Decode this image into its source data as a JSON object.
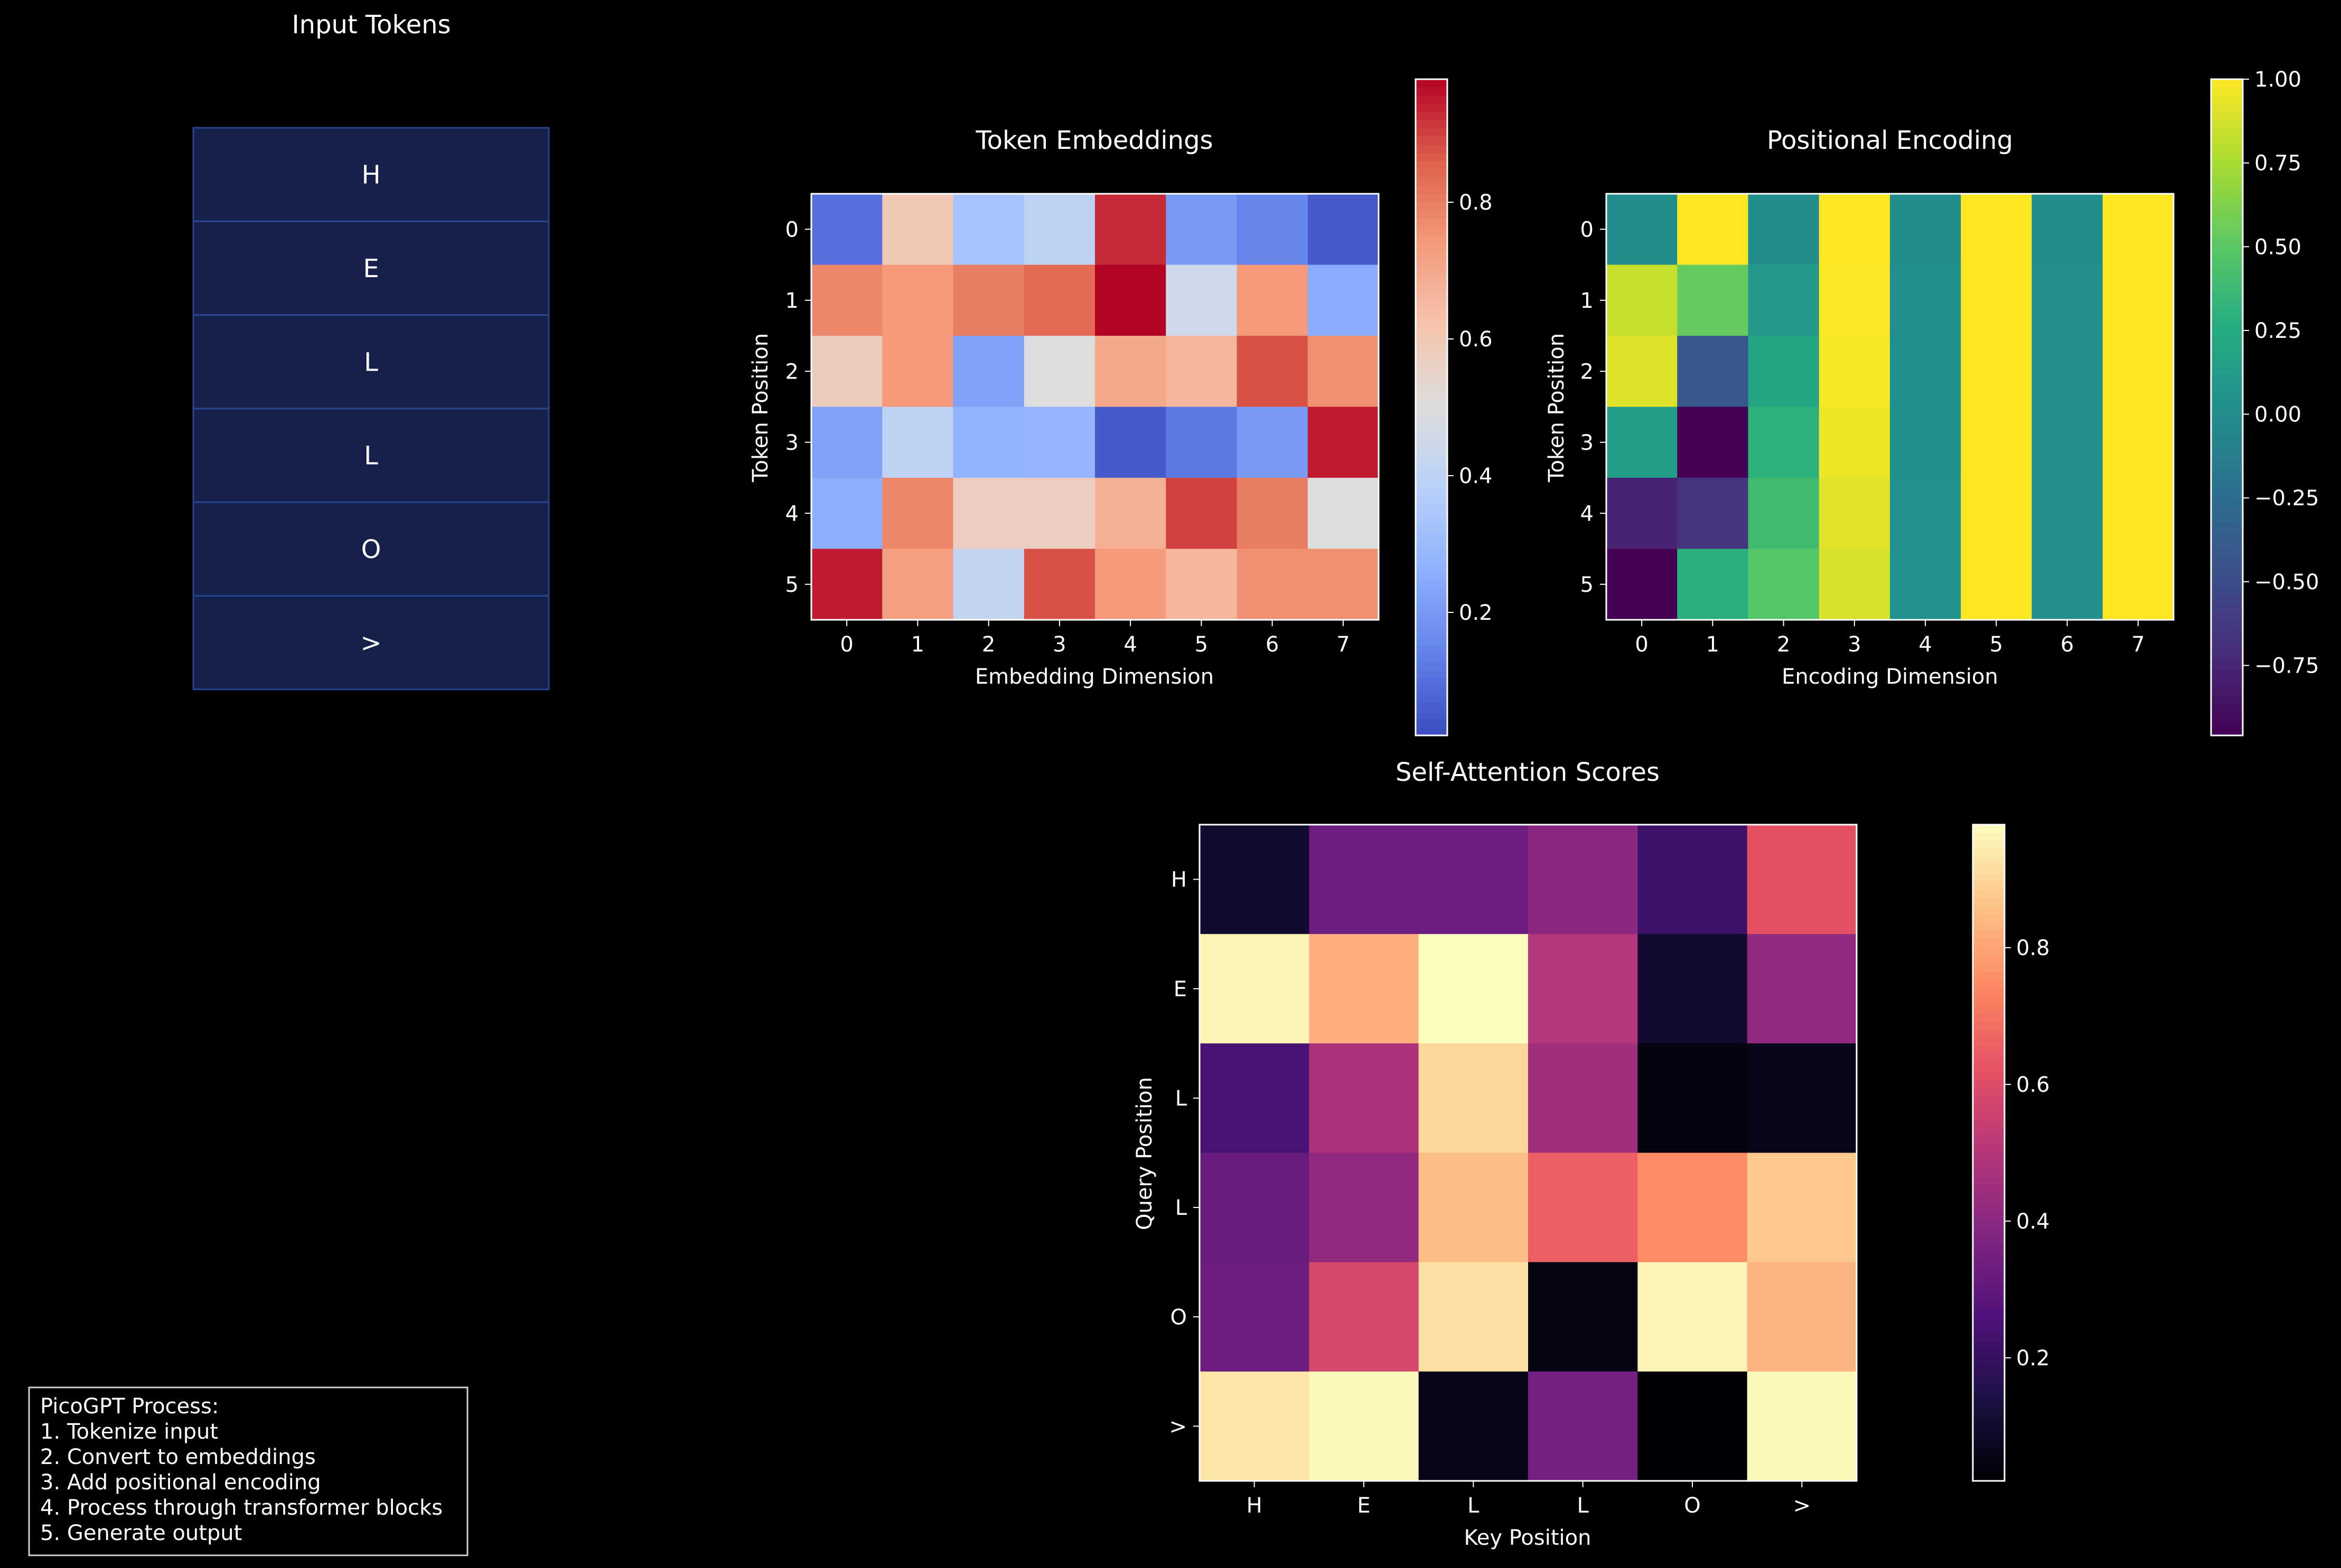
{
  "input_tokens": {
    "title": "Input Tokens",
    "tokens": [
      "H",
      "E",
      "L",
      "L",
      "O",
      ">"
    ]
  },
  "process_box": {
    "lines": [
      "PicoGPT Process:",
      "1. Tokenize input",
      "2. Convert to embeddings",
      "3. Add positional encoding",
      "4. Process through transformer blocks",
      "5. Generate output"
    ]
  },
  "colors": {
    "background": "#000000",
    "token_box_fill": "#15214a",
    "token_box_border": "#2a4590",
    "text": "#ffffff"
  },
  "chart_data": [
    {
      "type": "heatmap",
      "title": "Token Embeddings",
      "xlabel": "Embedding Dimension",
      "ylabel": "Token Position",
      "x_ticks": [
        "0",
        "1",
        "2",
        "3",
        "4",
        "5",
        "6",
        "7"
      ],
      "y_ticks": [
        "0",
        "1",
        "2",
        "3",
        "4",
        "5"
      ],
      "colormap": "coolwarm",
      "vmin": 0.02,
      "vmax": 0.98,
      "colorbar_ticks": [
        0.2,
        0.4,
        0.6,
        0.8
      ],
      "colorbar_labels": [
        "0.2",
        "0.4",
        "0.6",
        "0.8"
      ],
      "values": [
        [
          0.1,
          0.6,
          0.33,
          0.4,
          0.93,
          0.2,
          0.15,
          0.05
        ],
        [
          0.78,
          0.74,
          0.8,
          0.84,
          0.98,
          0.45,
          0.74,
          0.25
        ],
        [
          0.58,
          0.74,
          0.22,
          0.5,
          0.7,
          0.66,
          0.88,
          0.76
        ],
        [
          0.22,
          0.4,
          0.27,
          0.28,
          0.05,
          0.12,
          0.2,
          0.95
        ],
        [
          0.26,
          0.78,
          0.57,
          0.57,
          0.68,
          0.9,
          0.8,
          0.5
        ],
        [
          0.95,
          0.72,
          0.42,
          0.88,
          0.74,
          0.66,
          0.76,
          0.76
        ]
      ]
    },
    {
      "type": "heatmap",
      "title": "Positional Encoding",
      "xlabel": "Encoding Dimension",
      "ylabel": "Token Position",
      "x_ticks": [
        "0",
        "1",
        "2",
        "3",
        "4",
        "5",
        "6",
        "7"
      ],
      "y_ticks": [
        "0",
        "1",
        "2",
        "3",
        "4",
        "5"
      ],
      "colormap": "viridis",
      "vmin": -0.9589,
      "vmax": 1.0,
      "colorbar_ticks": [
        1.0,
        0.75,
        0.5,
        0.25,
        0.0,
        -0.25,
        -0.5,
        -0.75
      ],
      "colorbar_labels": [
        "1.00",
        "0.75",
        "0.50",
        "0.25",
        "0.00",
        "−0.25",
        "−0.50",
        "−0.75"
      ],
      "values": [
        [
          0.0,
          1.0,
          0.0,
          1.0,
          0.0,
          1.0,
          0.0,
          1.0
        ],
        [
          0.841,
          0.54,
          0.0998,
          0.995,
          0.01,
          1.0,
          0.001,
          1.0
        ],
        [
          0.909,
          -0.416,
          0.199,
          0.98,
          0.02,
          1.0,
          0.002,
          1.0
        ],
        [
          0.141,
          -0.99,
          0.296,
          0.955,
          0.03,
          1.0,
          0.003,
          1.0
        ],
        [
          -0.757,
          -0.654,
          0.389,
          0.921,
          0.04,
          0.999,
          0.004,
          1.0
        ],
        [
          -0.959,
          0.284,
          0.479,
          0.878,
          0.05,
          0.999,
          0.005,
          1.0
        ]
      ]
    },
    {
      "type": "heatmap",
      "title": "Self-Attention Scores",
      "xlabel": "Key Position",
      "ylabel": "Query Position",
      "x_ticks": [
        "H",
        "E",
        "L",
        "L",
        "O",
        ">"
      ],
      "y_ticks": [
        "H",
        "E",
        "L",
        "L",
        "O",
        ">"
      ],
      "colormap": "magma",
      "vmin": 0.02,
      "vmax": 0.98,
      "colorbar_ticks": [
        0.2,
        0.4,
        0.6,
        0.8
      ],
      "colorbar_labels": [
        "0.2",
        "0.4",
        "0.6",
        "0.8"
      ],
      "values": [
        [
          0.1,
          0.33,
          0.33,
          0.4,
          0.22,
          0.62
        ],
        [
          0.96,
          0.82,
          0.98,
          0.5,
          0.1,
          0.42
        ],
        [
          0.25,
          0.48,
          0.9,
          0.45,
          0.04,
          0.06
        ],
        [
          0.32,
          0.42,
          0.85,
          0.65,
          0.75,
          0.87
        ],
        [
          0.33,
          0.58,
          0.92,
          0.05,
          0.96,
          0.83
        ],
        [
          0.93,
          0.97,
          0.06,
          0.35,
          0.02,
          0.97
        ]
      ]
    }
  ]
}
